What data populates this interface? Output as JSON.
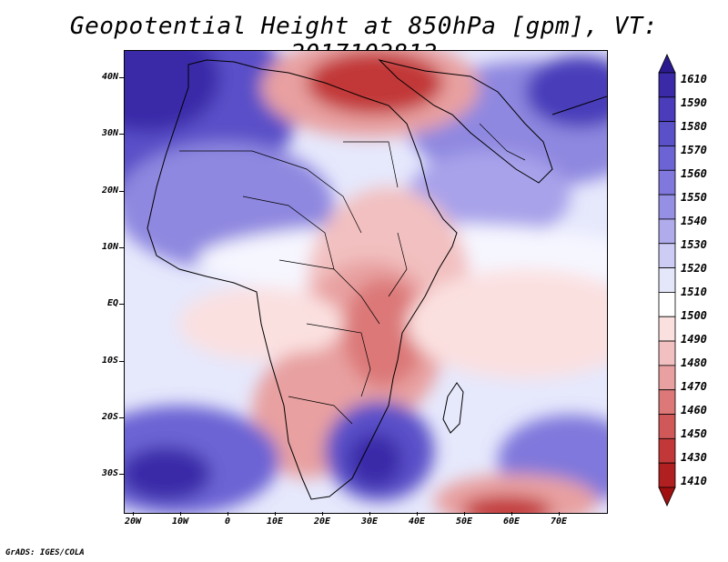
{
  "title": "Geopotential Height at 850hPa [gpm], VT: 2017102812",
  "footer": "GrADS: IGES/COLA",
  "lat_labels": [
    "40N",
    "30N",
    "20N",
    "10N",
    "EQ",
    "10S",
    "20S",
    "30S"
  ],
  "lon_labels": [
    "20W",
    "10W",
    "0",
    "10E",
    "20E",
    "30E",
    "40E",
    "50E",
    "60E",
    "70E"
  ],
  "colorbar": {
    "levels": [
      "1610",
      "1590",
      "1580",
      "1570",
      "1560",
      "1550",
      "1540",
      "1530",
      "1520",
      "1510",
      "1500",
      "1490",
      "1480",
      "1470",
      "1460",
      "1450",
      "1430",
      "1410"
    ],
    "colors": [
      "#2b1a8f",
      "#3a2aa8",
      "#4a3cba",
      "#5a50c8",
      "#6c64d4",
      "#8078dc",
      "#9690e4",
      "#b0acec",
      "#ccccf4",
      "#e4e6fa",
      "#ffffff",
      "#fbe0e0",
      "#f2c0c0",
      "#e8a0a0",
      "#dc7878",
      "#d05858",
      "#c23838",
      "#b02020",
      "#a01010"
    ]
  },
  "map": {
    "variable": "Geopotential Height at 850hPa",
    "units": "gpm",
    "valid_time": "2017102812",
    "lon_range": [
      -22,
      80
    ],
    "lat_range": [
      -37,
      45
    ]
  }
}
